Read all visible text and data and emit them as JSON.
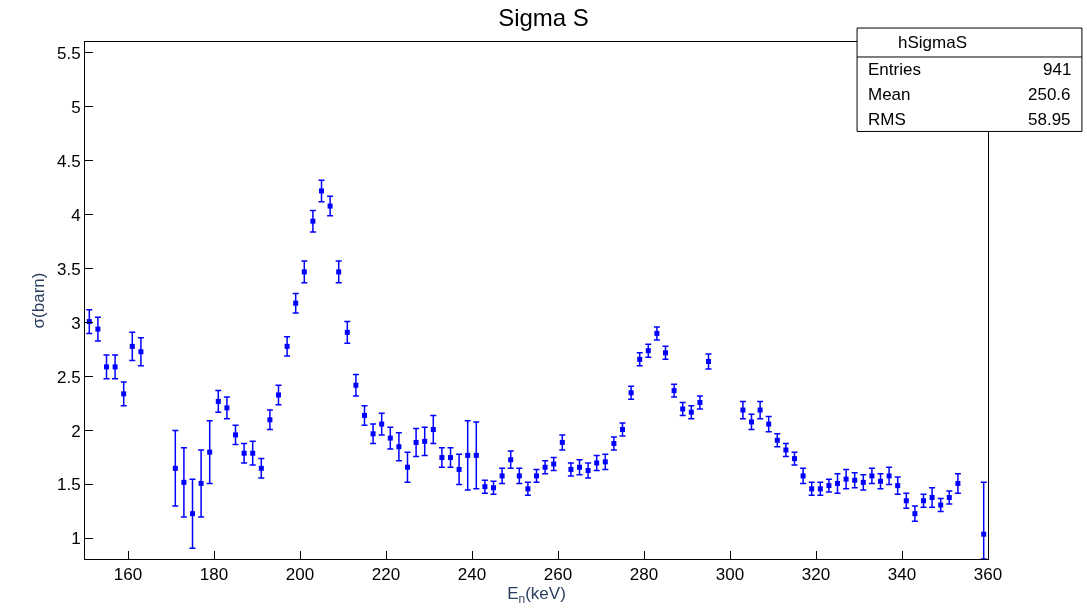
{
  "chart_data": {
    "type": "scatter",
    "title": "Sigma S",
    "xlabel": "E$_{n}$(keV)",
    "ylabel": "σ(barn)",
    "x": [
      151,
      153,
      155,
      157,
      159,
      161,
      163,
      165,
      167,
      169,
      171,
      173,
      175,
      177,
      179,
      181,
      183,
      185,
      187,
      189,
      191,
      193,
      195,
      197,
      199,
      201,
      203,
      205,
      207,
      209,
      211,
      213,
      215,
      217,
      219,
      221,
      223,
      225,
      227,
      229,
      231,
      233,
      235,
      237,
      239,
      241,
      243,
      245,
      247,
      249,
      251,
      253,
      255,
      257,
      259,
      261,
      263,
      265,
      267,
      269,
      271,
      273,
      275,
      277,
      279,
      281,
      283,
      285,
      287,
      289,
      291,
      293,
      295,
      297,
      299,
      301,
      303,
      305,
      307,
      309,
      311,
      313,
      315,
      317,
      319,
      321,
      323,
      325,
      327,
      329,
      331,
      333,
      335,
      337,
      339,
      341,
      343,
      345,
      347,
      349,
      351,
      353,
      355,
      357,
      359
    ],
    "series": [
      {
        "color": "#0000ff",
        "values": [
          3.01,
          2.94,
          2.59,
          2.59,
          2.34,
          2.78,
          2.73,
          null,
          null,
          null,
          1.65,
          1.52,
          1.23,
          1.51,
          1.8,
          2.27,
          2.21,
          1.96,
          1.79,
          1.79,
          1.65,
          2.1,
          2.33,
          2.78,
          3.18,
          3.47,
          3.94,
          4.22,
          4.08,
          3.47,
          2.91,
          2.42,
          2.14,
          1.97,
          2.06,
          1.93,
          1.85,
          1.66,
          1.89,
          1.9,
          2.01,
          1.75,
          1.75,
          1.64,
          1.77,
          1.77,
          1.48,
          1.47,
          1.58,
          1.73,
          1.58,
          1.46,
          1.58,
          1.66,
          1.69,
          1.89,
          1.64,
          1.66,
          1.63,
          1.7,
          1.71,
          1.88,
          2.01,
          2.35,
          2.66,
          2.74,
          2.9,
          2.72,
          2.37,
          2.2,
          2.17,
          2.26,
          2.64,
          null,
          null,
          null,
          2.19,
          2.08,
          2.19,
          2.06,
          1.91,
          1.82,
          1.74,
          1.58,
          1.46,
          1.46,
          1.49,
          1.51,
          1.55,
          1.54,
          1.52,
          1.58,
          1.53,
          1.58,
          1.49,
          1.35,
          1.23,
          1.35,
          1.38,
          1.31,
          1.38,
          1.51,
          null,
          null,
          1.04
        ],
        "errors": [
          0.11,
          0.11,
          0.11,
          0.11,
          0.11,
          0.13,
          0.13,
          null,
          null,
          null,
          0.35,
          0.32,
          0.32,
          0.31,
          0.29,
          0.1,
          0.1,
          0.09,
          0.09,
          0.11,
          0.09,
          0.09,
          0.09,
          0.09,
          0.09,
          0.1,
          0.1,
          0.1,
          0.09,
          0.1,
          0.1,
          0.1,
          0.09,
          0.09,
          0.1,
          0.1,
          0.13,
          0.14,
          0.13,
          0.13,
          0.13,
          0.09,
          0.09,
          0.14,
          0.32,
          0.31,
          0.06,
          0.06,
          0.07,
          0.08,
          0.07,
          0.06,
          0.06,
          0.06,
          0.06,
          0.07,
          0.06,
          0.07,
          0.07,
          0.07,
          0.07,
          0.06,
          0.06,
          0.06,
          0.06,
          0.06,
          0.06,
          0.06,
          0.06,
          0.06,
          0.06,
          0.06,
          0.07,
          null,
          null,
          null,
          0.08,
          0.07,
          0.08,
          0.07,
          0.06,
          0.06,
          0.06,
          0.07,
          0.06,
          0.06,
          0.06,
          0.09,
          0.09,
          0.07,
          0.07,
          0.07,
          0.07,
          0.08,
          0.08,
          0.07,
          0.07,
          0.06,
          0.09,
          0.06,
          0.06,
          0.09,
          null,
          null,
          [
            0.81,
            1.52
          ]
        ]
      }
    ],
    "xlim": [
      150,
      360
    ],
    "xticks": [
      160,
      180,
      200,
      220,
      240,
      260,
      280,
      300,
      320,
      340,
      360
    ],
    "ylim": [
      0.81,
      5.6
    ],
    "yticks": [
      1,
      1.5,
      2,
      2.5,
      3,
      3.5,
      4,
      4.5,
      5,
      5.5
    ],
    "marker": "square",
    "annotations": [
      "hSigmaS",
      "Entries",
      "941",
      "Mean",
      "250.6",
      "RMS",
      "58.95"
    ]
  }
}
